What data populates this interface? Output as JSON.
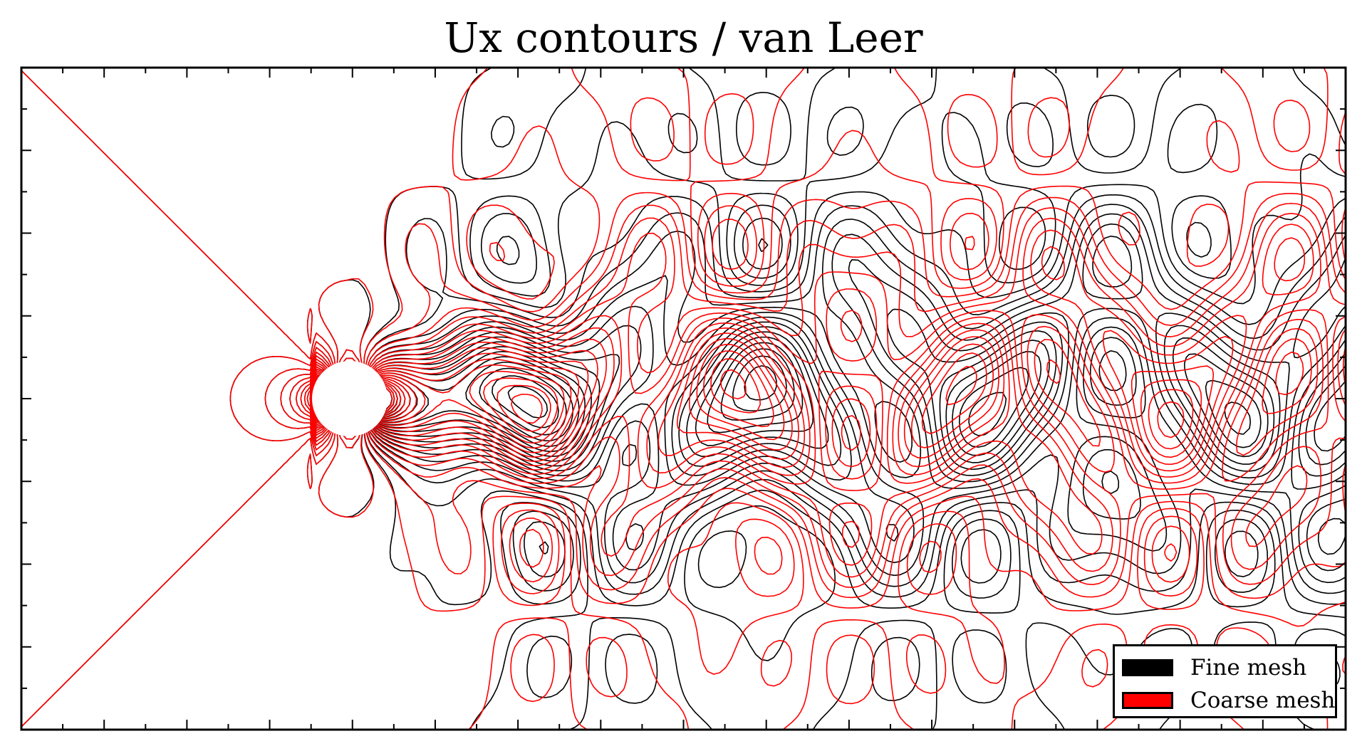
{
  "chart_data": {
    "type": "contour",
    "title": "Ux contours / van Leer",
    "xlabel": "",
    "ylabel": "",
    "show_tick_labels": false,
    "grid": false,
    "obstacle": {
      "shape": "circle"
    },
    "series": [
      {
        "name": "Fine mesh",
        "color": "#000000"
      },
      {
        "name": "Coarse mesh",
        "color": "#ff0000"
      }
    ],
    "legend": {
      "position": "lower-right"
    }
  }
}
